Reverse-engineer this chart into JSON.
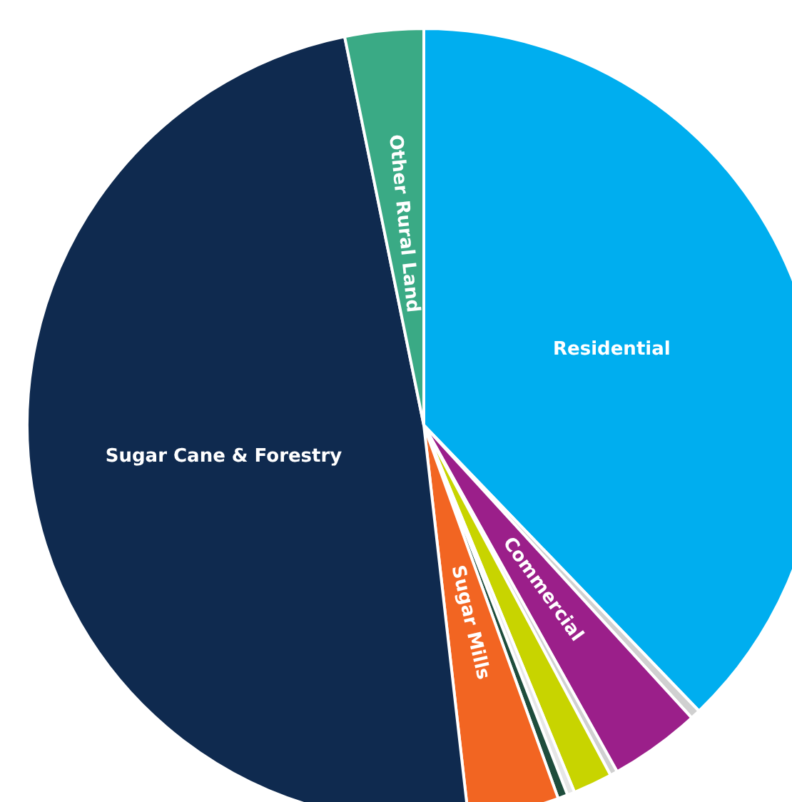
{
  "chart_data": {
    "type": "pie",
    "categories": [
      "Residential",
      null,
      "Commercial",
      null,
      null,
      null,
      null,
      "Sugar Mills",
      "Sugar Cane & Forestry",
      "Other Rural Land"
    ],
    "values": [
      37.8,
      0.4,
      3.7,
      0.3,
      1.6,
      0.3,
      0.4,
      3.7,
      48.6,
      3.2
    ],
    "colors": [
      "#00aeef",
      "#d0d0d0",
      "#9b1f8a",
      "#d0d0d0",
      "#c8d400",
      "#e6e6e6",
      "#1e4d3c",
      "#f26522",
      "#0f2a4f",
      "#3aaa85"
    ]
  }
}
